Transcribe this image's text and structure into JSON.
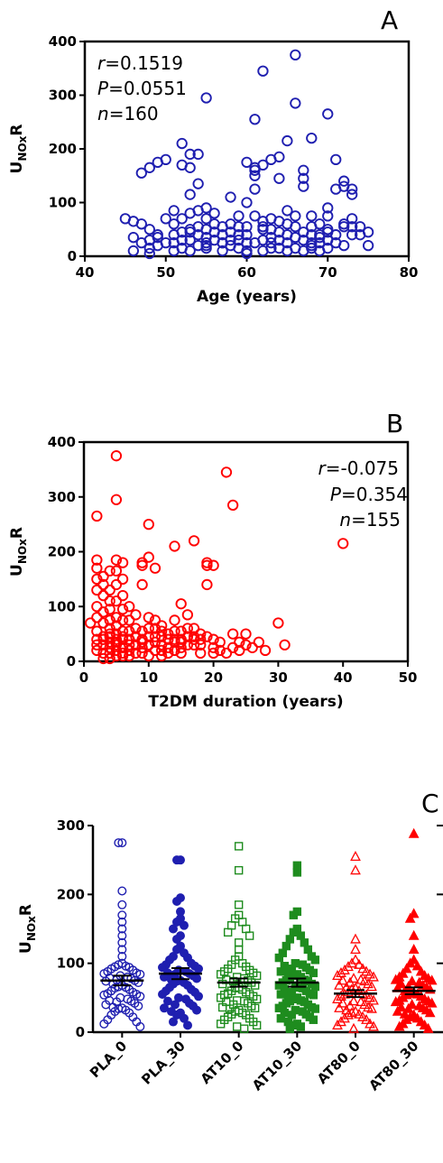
{
  "chart_data": [
    {
      "type": "scatter",
      "panel_label": "A",
      "xlabel": "Age (years)",
      "ylabel": "UNOxR",
      "xlim": [
        40,
        80
      ],
      "ylim": [
        0,
        400
      ],
      "xticks": [
        "40",
        "50",
        "60",
        "70",
        "80"
      ],
      "yticks": [
        "0",
        "100",
        "200",
        "300",
        "400"
      ],
      "color": "#1f1fb0",
      "marker": "open-circle",
      "annotation": [
        "r=0.1519",
        "P=0.0551",
        "n=160"
      ],
      "x": [
        45,
        46,
        46,
        46,
        47,
        47,
        48,
        48,
        48,
        48,
        48,
        49,
        49,
        49,
        50,
        50,
        50,
        51,
        51,
        51,
        51,
        51,
        52,
        52,
        52,
        52,
        52,
        52,
        53,
        53,
        53,
        53,
        53,
        53,
        53,
        54,
        54,
        54,
        54,
        54,
        54,
        55,
        55,
        55,
        55,
        55,
        55,
        55,
        56,
        56,
        56,
        56,
        57,
        57,
        57,
        57,
        58,
        58,
        58,
        58,
        58,
        59,
        59,
        59,
        59,
        60,
        60,
        60,
        60,
        60,
        60,
        60,
        61,
        61,
        61,
        61,
        61,
        61,
        61,
        62,
        62,
        62,
        62,
        62,
        62,
        63,
        63,
        63,
        63,
        63,
        63,
        64,
        64,
        64,
        64,
        64,
        64,
        65,
        65,
        65,
        65,
        65,
        65,
        66,
        66,
        66,
        66,
        66,
        66,
        67,
        67,
        67,
        67,
        67,
        67,
        68,
        68,
        68,
        68,
        68,
        68,
        69,
        69,
        69,
        69,
        69,
        70,
        70,
        70,
        70,
        70,
        70,
        71,
        71,
        71,
        71,
        72,
        72,
        72,
        72,
        73,
        73,
        73,
        73,
        73,
        74,
        74,
        75,
        75,
        47,
        49,
        53,
        55,
        57,
        59,
        62,
        66,
        68,
        70,
        72
      ],
      "y": [
        70,
        65,
        35,
        10,
        155,
        60,
        165,
        50,
        30,
        15,
        5,
        175,
        40,
        20,
        180,
        70,
        25,
        85,
        60,
        40,
        25,
        10,
        210,
        170,
        70,
        45,
        30,
        15,
        190,
        165,
        115,
        80,
        50,
        30,
        10,
        190,
        135,
        85,
        55,
        40,
        20,
        295,
        90,
        70,
        50,
        35,
        25,
        15,
        80,
        60,
        45,
        30,
        55,
        40,
        25,
        10,
        110,
        60,
        45,
        30,
        20,
        75,
        55,
        40,
        15,
        175,
        100,
        55,
        40,
        25,
        10,
        5,
        255,
        165,
        160,
        150,
        125,
        75,
        25,
        345,
        170,
        65,
        50,
        30,
        10,
        180,
        70,
        50,
        35,
        25,
        15,
        185,
        145,
        65,
        45,
        30,
        15,
        215,
        85,
        60,
        40,
        25,
        10,
        375,
        285,
        75,
        55,
        35,
        15,
        160,
        145,
        130,
        45,
        30,
        10,
        220,
        75,
        55,
        40,
        25,
        15,
        60,
        40,
        35,
        25,
        10,
        265,
        90,
        75,
        50,
        30,
        15,
        180,
        125,
        40,
        25,
        140,
        130,
        55,
        20,
        125,
        115,
        70,
        55,
        40,
        40,
        55,
        45,
        20,
        25,
        35,
        45,
        20,
        25,
        30,
        55,
        35,
        20,
        45,
        60
      ]
    },
    {
      "type": "scatter",
      "panel_label": "B",
      "xlabel": "T2DM duration (years)",
      "ylabel": "UNOxR",
      "xlim": [
        0,
        50
      ],
      "ylim": [
        0,
        400
      ],
      "xticks": [
        "0",
        "10",
        "20",
        "30",
        "40",
        "50"
      ],
      "yticks": [
        "0",
        "100",
        "200",
        "300",
        "400"
      ],
      "color": "#ff0000",
      "marker": "open-circle",
      "annotation": [
        "r=-0.075",
        "P=0.354",
        "n=155"
      ],
      "x": [
        1,
        2,
        2,
        2,
        2,
        2,
        2,
        2,
        2,
        2,
        2,
        3,
        3,
        3,
        3,
        3,
        3,
        3,
        3,
        3,
        4,
        4,
        4,
        4,
        4,
        4,
        4,
        4,
        4,
        4,
        4,
        5,
        5,
        5,
        5,
        5,
        5,
        5,
        5,
        5,
        5,
        5,
        5,
        5,
        6,
        6,
        6,
        6,
        6,
        6,
        6,
        6,
        6,
        6,
        7,
        7,
        7,
        7,
        7,
        7,
        7,
        8,
        8,
        8,
        8,
        8,
        9,
        9,
        9,
        9,
        9,
        9,
        9,
        10,
        10,
        10,
        10,
        10,
        10,
        10,
        11,
        11,
        11,
        11,
        11,
        12,
        12,
        12,
        12,
        12,
        13,
        13,
        13,
        13,
        14,
        14,
        14,
        14,
        14,
        15,
        15,
        15,
        15,
        15,
        16,
        16,
        16,
        16,
        17,
        17,
        17,
        17,
        18,
        18,
        18,
        18,
        19,
        19,
        19,
        19,
        20,
        20,
        20,
        20,
        21,
        21,
        22,
        22,
        23,
        23,
        23,
        24,
        24,
        25,
        25,
        26,
        27,
        28,
        30,
        31,
        40,
        2,
        3,
        4,
        5,
        6,
        7,
        8,
        9,
        11,
        12,
        14,
        15,
        16,
        17
      ],
      "y": [
        70,
        265,
        185,
        170,
        150,
        130,
        100,
        80,
        55,
        40,
        20,
        155,
        140,
        120,
        90,
        70,
        45,
        30,
        15,
        5,
        165,
        130,
        110,
        95,
        75,
        60,
        45,
        35,
        25,
        15,
        5,
        375,
        295,
        185,
        165,
        140,
        110,
        80,
        65,
        50,
        40,
        30,
        20,
        10,
        180,
        150,
        120,
        95,
        75,
        55,
        40,
        25,
        15,
        10,
        100,
        75,
        55,
        40,
        30,
        20,
        10,
        85,
        60,
        45,
        30,
        15,
        180,
        175,
        140,
        55,
        40,
        25,
        15,
        250,
        190,
        80,
        60,
        45,
        30,
        10,
        170,
        75,
        60,
        35,
        20,
        65,
        45,
        30,
        20,
        10,
        50,
        40,
        25,
        15,
        210,
        75,
        55,
        35,
        20,
        105,
        55,
        40,
        25,
        15,
        85,
        60,
        45,
        30,
        220,
        60,
        45,
        30,
        50,
        40,
        30,
        15,
        180,
        175,
        140,
        45,
        175,
        40,
        25,
        15,
        35,
        20,
        345,
        15,
        285,
        50,
        25,
        35,
        20,
        50,
        30,
        25,
        35,
        20,
        70,
        30,
        215,
        30,
        40,
        50,
        35,
        45,
        40,
        30,
        35,
        45,
        55,
        40,
        35,
        45,
        40
      ]
    },
    {
      "type": "scatter",
      "panel_label": "C",
      "ylabel": "UNOxR",
      "ylim": [
        0,
        300
      ],
      "yticks": [
        "0",
        "100",
        "200",
        "300"
      ],
      "categories": [
        "PLA_0",
        "PLA_30",
        "AT10_0",
        "AT10_30",
        "AT80_0",
        "AT80_30"
      ],
      "series": [
        {
          "name": "PLA_0",
          "color": "#1f1fb0",
          "marker": "open-circle",
          "mean": 75,
          "sem": 7,
          "values": [
            275,
            275,
            205,
            185,
            170,
            160,
            150,
            140,
            130,
            120,
            110,
            100,
            98,
            96,
            95,
            94,
            92,
            90,
            88,
            86,
            85,
            84,
            82,
            80,
            79,
            78,
            76,
            75,
            74,
            72,
            70,
            68,
            66,
            65,
            64,
            62,
            60,
            58,
            56,
            55,
            54,
            52,
            50,
            48,
            46,
            45,
            44,
            42,
            40,
            38,
            36,
            35,
            34,
            32,
            30,
            28,
            25,
            22,
            18,
            15,
            12,
            8
          ]
        },
        {
          "name": "PLA_30",
          "color": "#1f1fb0",
          "marker": "filled-circle",
          "mean": 85,
          "sem": 8,
          "values": [
            250,
            250,
            195,
            190,
            175,
            165,
            160,
            155,
            150,
            140,
            135,
            125,
            120,
            115,
            110,
            108,
            105,
            100,
            98,
            96,
            94,
            92,
            90,
            88,
            86,
            85,
            84,
            82,
            80,
            78,
            76,
            75,
            74,
            72,
            70,
            68,
            65,
            62,
            60,
            58,
            55,
            52,
            50,
            48,
            45,
            42,
            40,
            38,
            35,
            32,
            30,
            28,
            25,
            20,
            15,
            10
          ]
        },
        {
          "name": "AT10_0",
          "color": "#1e8c1e",
          "marker": "open-square",
          "mean": 72,
          "sem": 6,
          "values": [
            270,
            235,
            185,
            170,
            165,
            160,
            155,
            150,
            145,
            140,
            130,
            120,
            110,
            105,
            100,
            98,
            95,
            92,
            90,
            88,
            86,
            84,
            82,
            80,
            78,
            76,
            75,
            74,
            72,
            70,
            68,
            66,
            65,
            64,
            62,
            60,
            58,
            56,
            55,
            54,
            52,
            50,
            48,
            46,
            45,
            44,
            42,
            40,
            38,
            36,
            35,
            34,
            32,
            30,
            28,
            26,
            25,
            22,
            20,
            18,
            15,
            12,
            10,
            8,
            5
          ]
        },
        {
          "name": "AT10_30",
          "color": "#1e8c1e",
          "marker": "filled-square",
          "mean": 72,
          "sem": 6,
          "values": [
            242,
            232,
            175,
            170,
            150,
            145,
            140,
            135,
            130,
            125,
            120,
            115,
            110,
            108,
            105,
            100,
            98,
            96,
            94,
            92,
            90,
            88,
            86,
            85,
            84,
            82,
            80,
            78,
            76,
            75,
            74,
            72,
            70,
            68,
            66,
            65,
            64,
            62,
            60,
            58,
            56,
            55,
            54,
            52,
            50,
            48,
            46,
            45,
            44,
            42,
            40,
            38,
            36,
            35,
            34,
            32,
            30,
            28,
            26,
            25,
            22,
            20,
            18,
            15,
            12,
            10,
            8,
            5
          ]
        },
        {
          "name": "AT80_0",
          "color": "#ff0000",
          "marker": "open-triangle",
          "mean": 56,
          "sem": 5,
          "values": [
            255,
            235,
            135,
            120,
            105,
            100,
            98,
            95,
            92,
            90,
            88,
            86,
            84,
            82,
            80,
            78,
            76,
            75,
            74,
            72,
            70,
            68,
            66,
            65,
            64,
            62,
            60,
            58,
            56,
            55,
            54,
            52,
            50,
            48,
            46,
            45,
            44,
            42,
            40,
            38,
            36,
            35,
            34,
            32,
            30,
            28,
            26,
            25,
            22,
            20,
            18,
            15,
            12,
            10,
            8,
            5
          ]
        },
        {
          "name": "AT80_30",
          "color": "#ff0000",
          "marker": "filled-triangle",
          "mean": 60,
          "sem": 5,
          "values": [
            288,
            172,
            165,
            140,
            120,
            105,
            100,
            96,
            92,
            88,
            85,
            82,
            80,
            78,
            76,
            75,
            74,
            72,
            70,
            68,
            66,
            65,
            64,
            62,
            60,
            58,
            56,
            55,
            54,
            52,
            50,
            48,
            46,
            45,
            44,
            42,
            40,
            38,
            36,
            35,
            34,
            32,
            30,
            28,
            26,
            25,
            22,
            20,
            18,
            15,
            12,
            10,
            8,
            5
          ]
        }
      ]
    }
  ]
}
